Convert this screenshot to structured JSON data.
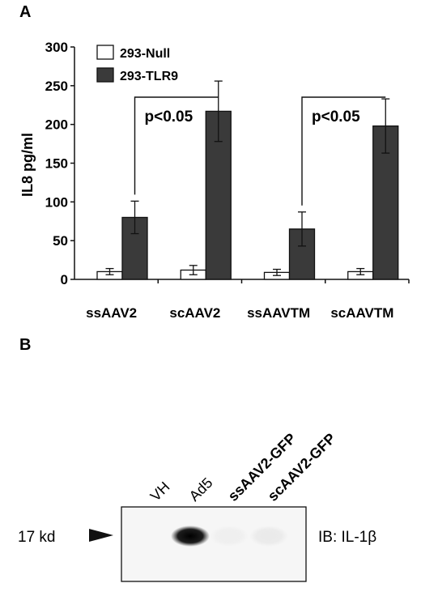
{
  "panel_a_label": "A",
  "panel_b_label": "B",
  "chart_data": {
    "type": "bar",
    "ylabel": "IL8 pg/ml",
    "xlabel": "",
    "ylim": [
      0,
      300
    ],
    "yticks": [
      0,
      50,
      100,
      150,
      200,
      250,
      300
    ],
    "legend_position": "top-left",
    "grid": false,
    "categories": [
      "ssAAV2",
      "scAAV2",
      "ssAAVTM",
      "scAAVTM"
    ],
    "series": [
      {
        "name": "293-Null",
        "values": [
          10,
          12,
          9,
          10
        ],
        "errors": [
          4,
          6,
          4,
          4
        ],
        "color": "#ffffff"
      },
      {
        "name": "293-TLR9",
        "values": [
          80,
          217,
          65,
          198
        ],
        "errors": [
          21,
          39,
          22,
          35
        ],
        "color": "#3a3a3a"
      }
    ],
    "annotations": [
      {
        "text": "p<0.05",
        "from_category": 0,
        "to_category": 1
      },
      {
        "text": "p<0.05",
        "from_category": 2,
        "to_category": 3
      }
    ]
  },
  "blot": {
    "lanes": [
      {
        "label": "VH",
        "bold": false,
        "band": 0
      },
      {
        "label": "Ad5",
        "bold": false,
        "band": 1
      },
      {
        "label": "ssAAV2-GFP",
        "bold": true,
        "band": 0.03
      },
      {
        "label": "scAAV2-GFP",
        "bold": true,
        "band": 0.05
      }
    ],
    "marker": "17 kd",
    "antibody": "IB: IL-1β"
  }
}
